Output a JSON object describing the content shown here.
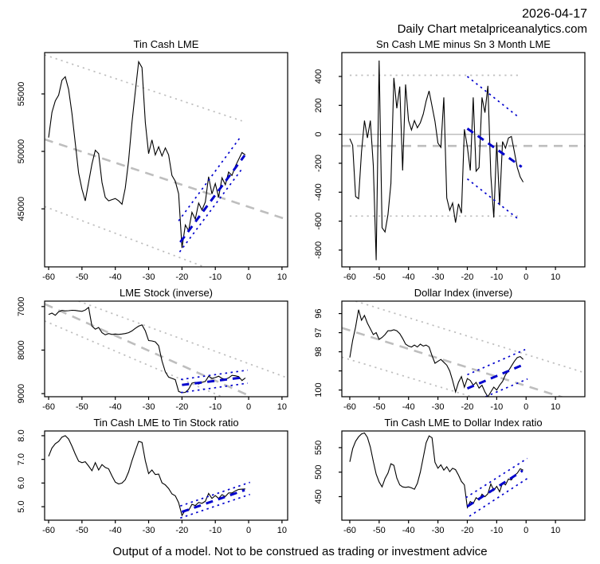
{
  "header": {
    "date": "2026-04-17",
    "source": "Daily Chart metalpriceanalytics.com"
  },
  "footer": {
    "disclaimer": "Output of a model. Not to be construed as trading or investment advice"
  },
  "colors": {
    "background": "#FFFFFF",
    "text": "#000000",
    "series": "#000000",
    "trend": "#BEBEBE",
    "forecast": "#0000CD"
  },
  "chart_data": [
    {
      "type": "line",
      "title": "Tin Cash LME",
      "xlabel": "",
      "ylabel": "",
      "grid": false,
      "legend_position": "none",
      "xlim": [
        -61.2,
        11.7
      ],
      "ylim_top": 58600,
      "ylim_bottom": 39950,
      "xticks": [
        -60,
        -50,
        -40,
        -30,
        -20,
        -10,
        0,
        10
      ],
      "yticks": [
        {
          "v": 45000,
          "label": "45000"
        },
        {
          "v": 50000,
          "label": "50000"
        },
        {
          "v": 55000,
          "label": "55000"
        }
      ],
      "x_start": -60,
      "x_step": 1,
      "values": [
        51200,
        53400,
        54400,
        54900,
        56200,
        56500,
        55400,
        53300,
        50700,
        48100,
        46700,
        45700,
        47300,
        48900,
        50100,
        49800,
        47300,
        46000,
        45700,
        45800,
        45900,
        45700,
        45400,
        46800,
        49200,
        52500,
        55200,
        57800,
        57300,
        52500,
        49800,
        51000,
        49700,
        50400,
        49600,
        50300,
        49700,
        47900,
        47400,
        46300,
        41600,
        43600,
        43100,
        44700,
        44100,
        45500,
        44900,
        45600,
        47800,
        46300,
        47200,
        46000,
        47700,
        47100,
        48200,
        47900,
        48700,
        49300,
        49900,
        49700
      ],
      "overlays": [
        {
          "name": "trend-midline",
          "style": "gray-dashed",
          "points": [
            [
              -61.2,
              51050
            ],
            [
              11.7,
              44050
            ]
          ]
        },
        {
          "name": "trend-upper-band",
          "style": "gray-dotted",
          "points": [
            [
              -61.2,
              58400
            ],
            [
              -2,
              52650
            ]
          ]
        },
        {
          "name": "trend-lower-band",
          "style": "gray-dotted",
          "points": [
            [
              -61.2,
              45200
            ],
            [
              -13.8,
              40000
            ]
          ]
        },
        {
          "name": "forecast-midline",
          "style": "blue-dashed",
          "points": [
            [
              -20.5,
              42100
            ],
            [
              -1.2,
              49650
            ]
          ]
        },
        {
          "name": "forecast-upper-band",
          "style": "blue-dotted",
          "points": [
            [
              -21,
              43950
            ],
            [
              -2.2,
              51350
            ]
          ]
        },
        {
          "name": "forecast-lower-band",
          "style": "blue-dotted",
          "points": [
            [
              -20.7,
              41250
            ],
            [
              -2.2,
              48400
            ]
          ]
        }
      ]
    },
    {
      "type": "line",
      "title": "Sn Cash LME minus Sn 3 Month LME",
      "xlabel": "",
      "ylabel": "",
      "grid": false,
      "legend_position": "none",
      "xlim": [
        -62.7,
        20
      ],
      "ylim_top": 565,
      "ylim_bottom": -916,
      "xticks": [
        -60,
        -50,
        -40,
        -30,
        -20,
        -10,
        0,
        10
      ],
      "yticks": [
        {
          "v": 400,
          "label": "400"
        },
        {
          "v": 200,
          "label": "200"
        },
        {
          "v": 0,
          "label": "0"
        },
        {
          "v": -200,
          "label": "-200"
        },
        {
          "v": -400,
          "label": "-400"
        },
        {
          "v": -600,
          "label": "-600"
        },
        {
          "v": -800,
          "label": "-800"
        }
      ],
      "x_start": -60,
      "x_step": 1,
      "values": [
        -30,
        -75,
        -430,
        -445,
        -120,
        95,
        -25,
        95,
        -215,
        -870,
        510,
        -645,
        -675,
        -555,
        -340,
        390,
        180,
        330,
        -250,
        345,
        95,
        30,
        95,
        45,
        80,
        140,
        230,
        300,
        195,
        90,
        -60,
        -90,
        255,
        -440,
        -525,
        -475,
        -610,
        -480,
        -545,
        35,
        -85,
        -250,
        255,
        -255,
        -230,
        255,
        150,
        335,
        -285,
        -575,
        -55,
        -490,
        -50,
        -95,
        -25,
        -15,
        -120,
        -230,
        -295,
        -330
      ],
      "overlays": [
        {
          "name": "zero-line",
          "style": "gray-solid",
          "points": [
            [
              -62.7,
              0
            ],
            [
              20,
              0
            ]
          ]
        },
        {
          "name": "trend-midline",
          "style": "gray-dashed",
          "points": [
            [
              -62.7,
              -80
            ],
            [
              20,
              -80
            ]
          ]
        },
        {
          "name": "trend-upper-band",
          "style": "gray-dotted",
          "points": [
            [
              -60,
              408
            ],
            [
              -1.5,
              408
            ]
          ]
        },
        {
          "name": "trend-lower-band",
          "style": "gray-dotted",
          "points": [
            [
              -60,
              -565
            ],
            [
              -1.5,
              -565
            ]
          ]
        },
        {
          "name": "forecast-midline",
          "style": "blue-dashed",
          "points": [
            [
              -20,
              40
            ],
            [
              -1.5,
              -225
            ]
          ]
        },
        {
          "name": "forecast-upper-band",
          "style": "blue-dotted",
          "points": [
            [
              -20,
              400
            ],
            [
              -2.5,
              118
            ]
          ]
        },
        {
          "name": "forecast-lower-band",
          "style": "blue-dotted",
          "points": [
            [
              -20,
              -308
            ],
            [
              -2.5,
              -588
            ]
          ]
        }
      ]
    },
    {
      "type": "line",
      "title": "LME Stock (inverse)",
      "xlabel": "",
      "ylabel": "",
      "grid": false,
      "legend_position": "none",
      "xlim": [
        -61.2,
        11.7
      ],
      "ylim_top": 6875,
      "ylim_bottom": 9071,
      "xticks": [
        -60,
        -50,
        -40,
        -30,
        -20,
        -10,
        0,
        10
      ],
      "yticks": [
        {
          "v": 7000,
          "label": "7000"
        },
        {
          "v": 8000,
          "label": "8000"
        },
        {
          "v": 9000,
          "label": "9000"
        }
      ],
      "x_start": -60,
      "x_step": 1,
      "values": [
        7180,
        7150,
        7200,
        7120,
        7090,
        7100,
        7095,
        7085,
        7090,
        7100,
        7110,
        7080,
        7020,
        7450,
        7520,
        7480,
        7600,
        7650,
        7620,
        7640,
        7630,
        7640,
        7630,
        7620,
        7600,
        7560,
        7500,
        7450,
        7420,
        7560,
        7780,
        7790,
        7810,
        7900,
        8250,
        8500,
        8620,
        8650,
        8680,
        8950,
        8980,
        8970,
        8900,
        8760,
        8740,
        8780,
        8740,
        8720,
        8600,
        8650,
        8630,
        8600,
        8650,
        8670,
        8640,
        8580,
        8590,
        8610,
        8700,
        8640
      ],
      "overlays": [
        {
          "name": "trend-midline",
          "style": "gray-dashed",
          "points": [
            [
              -61.2,
              6940
            ],
            [
              0.8,
              9071
            ]
          ]
        },
        {
          "name": "trend-upper-band",
          "style": "gray-dotted",
          "points": [
            [
              -51,
              6875
            ],
            [
              11.7,
              8640
            ]
          ]
        },
        {
          "name": "trend-lower-band",
          "style": "gray-dotted",
          "points": [
            [
              -61.2,
              7330
            ],
            [
              -8,
              9071
            ]
          ]
        },
        {
          "name": "forecast-midline",
          "style": "blue-dashed",
          "points": [
            [
              -20,
              8800
            ],
            [
              -1.3,
              8625
            ]
          ]
        },
        {
          "name": "forecast-upper-band",
          "style": "blue-dotted",
          "points": [
            [
              -20.3,
              8675
            ],
            [
              -0.3,
              8460
            ]
          ]
        },
        {
          "name": "forecast-lower-band",
          "style": "blue-dotted",
          "points": [
            [
              -20.3,
              8975
            ],
            [
              -0.3,
              8760
            ]
          ]
        }
      ]
    },
    {
      "type": "line",
      "title": "Dollar Index (inverse)",
      "xlabel": "",
      "ylabel": "",
      "grid": false,
      "legend_position": "none",
      "xlim": [
        -62.7,
        20
      ],
      "ylim_top": 95.35,
      "ylim_bottom": 100.35,
      "xticks": [
        -60,
        -50,
        -40,
        -30,
        -20,
        -10,
        0,
        10
      ],
      "yticks": [
        {
          "v": 96,
          "label": "96"
        },
        {
          "v": 97,
          "label": "97"
        },
        {
          "v": 98,
          "label": "98"
        },
        {
          "v": 99,
          "label": ""
        },
        {
          "v": 100,
          "label": "100"
        }
      ],
      "x_start": -60,
      "x_step": 1,
      "values": [
        98.3,
        97.4,
        96.7,
        95.8,
        96.35,
        96.1,
        96.5,
        96.8,
        97.1,
        97.0,
        97.35,
        97.25,
        97.1,
        96.9,
        96.9,
        96.85,
        96.9,
        97.05,
        97.3,
        97.6,
        97.7,
        97.75,
        97.65,
        97.75,
        97.6,
        97.7,
        97.65,
        97.75,
        98.2,
        98.6,
        98.5,
        98.4,
        98.55,
        98.7,
        99.0,
        99.5,
        100.1,
        99.6,
        99.3,
        99.85,
        99.4,
        99.5,
        99.75,
        99.6,
        99.9,
        99.75,
        100.1,
        100.35,
        100.1,
        99.85,
        100.0,
        99.75,
        99.55,
        99.2,
        99.0,
        98.75,
        98.5,
        98.3,
        98.25,
        98.4
      ],
      "overlays": [
        {
          "name": "trend-midline",
          "style": "gray-dashed",
          "points": [
            [
              -62.7,
              96.75
            ],
            [
              20,
              100.75
            ]
          ]
        },
        {
          "name": "trend-upper-band",
          "style": "gray-dotted",
          "points": [
            [
              -58,
              95.35
            ],
            [
              20,
              99.1
            ]
          ]
        },
        {
          "name": "trend-lower-band",
          "style": "gray-dotted",
          "points": [
            [
              -62.7,
              98.28
            ],
            [
              -18.5,
              100.35
            ]
          ]
        },
        {
          "name": "forecast-midline",
          "style": "blue-dashed",
          "points": [
            [
              -20,
              99.92
            ],
            [
              -1.3,
              98.7
            ]
          ]
        },
        {
          "name": "forecast-upper-band",
          "style": "blue-dotted",
          "points": [
            [
              -20,
              99.2
            ],
            [
              -0.3,
              97.88
            ]
          ]
        },
        {
          "name": "forecast-lower-band",
          "style": "blue-dotted",
          "points": [
            [
              -13.8,
              100.35
            ],
            [
              0.5,
              99.42
            ]
          ]
        }
      ]
    },
    {
      "type": "line",
      "title": "Tin Cash LME to Tin Stock ratio",
      "xlabel": "",
      "ylabel": "",
      "grid": false,
      "legend_position": "none",
      "xlim": [
        -61.2,
        11.7
      ],
      "ylim_top": 8.2,
      "ylim_bottom": 4.43,
      "xticks": [
        -60,
        -50,
        -40,
        -30,
        -20,
        -10,
        0,
        10
      ],
      "yticks": [
        {
          "v": 5.0,
          "label": "5.0"
        },
        {
          "v": 6.0,
          "label": "6.0"
        },
        {
          "v": 7.0,
          "label": "7.0"
        },
        {
          "v": 8.0,
          "label": "8.0"
        }
      ],
      "x_start": -60,
      "x_step": 1,
      "values": [
        7.13,
        7.48,
        7.66,
        7.76,
        7.94,
        8.0,
        7.86,
        7.56,
        7.22,
        6.92,
        6.86,
        6.9,
        6.72,
        6.52,
        6.86,
        6.55,
        6.78,
        6.66,
        6.6,
        6.3,
        6.04,
        5.96,
        6.0,
        6.14,
        6.47,
        6.94,
        7.36,
        7.76,
        7.72,
        6.94,
        6.4,
        6.55,
        6.36,
        6.38,
        6.01,
        5.92,
        5.77,
        5.54,
        5.46,
        5.17,
        4.63,
        4.86,
        4.84,
        5.1,
        5.05,
        5.18,
        5.14,
        5.23,
        5.56,
        5.35,
        5.47,
        5.35,
        5.51,
        5.43,
        5.58,
        5.58,
        5.67,
        5.73,
        5.74,
        5.75
      ],
      "overlays": [
        {
          "name": "forecast-midline",
          "style": "blue-dashed",
          "points": [
            [
              -20,
              4.78
            ],
            [
              -1.2,
              5.7
            ]
          ]
        },
        {
          "name": "forecast-upper-band",
          "style": "blue-dotted",
          "points": [
            [
              -20.5,
              5.03
            ],
            [
              0.4,
              6.03
            ]
          ]
        },
        {
          "name": "forecast-lower-band",
          "style": "blue-dotted",
          "points": [
            [
              -20.5,
              4.52
            ],
            [
              0.4,
              5.52
            ]
          ]
        }
      ]
    },
    {
      "type": "line",
      "title": "Tin Cash LME to Dollar Index ratio",
      "xlabel": "",
      "ylabel": "",
      "grid": false,
      "legend_position": "none",
      "xlim": [
        -62.7,
        20
      ],
      "ylim_top": 584,
      "ylim_bottom": 402,
      "xticks": [
        -60,
        -50,
        -40,
        -30,
        -20,
        -10,
        0,
        10
      ],
      "yticks": [
        {
          "v": 450,
          "label": "450"
        },
        {
          "v": 500,
          "label": "500"
        },
        {
          "v": 550,
          "label": "550"
        }
      ],
      "x_start": -60,
      "x_step": 1,
      "values": [
        521,
        548,
        563,
        572,
        578,
        580,
        571,
        551,
        522,
        496,
        480,
        470,
        487,
        498,
        517,
        514,
        488,
        474,
        470,
        469,
        470,
        468,
        465,
        477,
        500,
        530,
        560,
        574,
        570,
        520,
        508,
        515,
        504,
        511,
        501,
        508,
        505,
        494,
        481,
        474,
        428,
        440,
        436,
        448,
        443,
        455,
        450,
        456,
        476,
        463,
        471,
        460,
        478,
        474,
        486,
        484,
        493,
        498,
        507,
        504
      ],
      "overlays": [
        {
          "name": "forecast-midline",
          "style": "blue-dashed",
          "points": [
            [
              -20,
              430
            ],
            [
              -1.2,
              503
            ]
          ]
        },
        {
          "name": "forecast-upper-band",
          "style": "blue-dotted",
          "points": [
            [
              -20.5,
              448
            ],
            [
              0.4,
              528
            ]
          ]
        },
        {
          "name": "forecast-lower-band",
          "style": "blue-dotted",
          "points": [
            [
              -19.3,
              410
            ],
            [
              0.4,
              487
            ]
          ]
        }
      ]
    }
  ]
}
